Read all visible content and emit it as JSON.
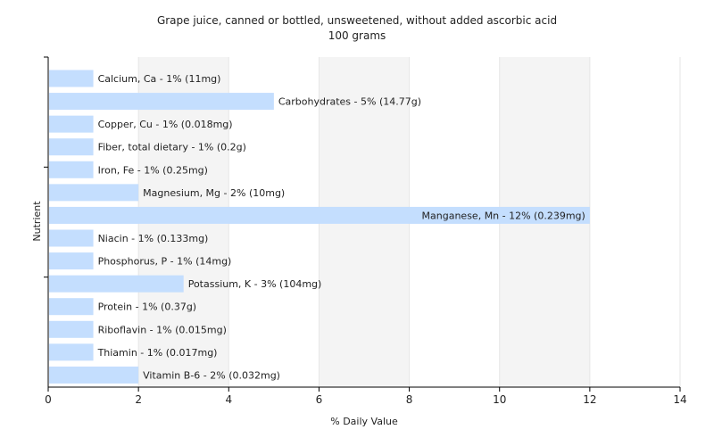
{
  "chart_data": {
    "type": "bar",
    "orientation": "horizontal",
    "title": "Grape juice, canned or bottled, unsweetened, without added ascorbic acid",
    "subtitle": "100 grams",
    "xlabel": "% Daily Value",
    "ylabel": "Nutrient",
    "xlim": [
      0,
      14
    ],
    "xticks": [
      0,
      2,
      4,
      6,
      8,
      10,
      12,
      14
    ],
    "grid": true,
    "bar_color": "#c4defe",
    "categories": [
      "Calcium, Ca",
      "Carbohydrates",
      "Copper, Cu",
      "Fiber, total dietary",
      "Iron, Fe",
      "Magnesium, Mg",
      "Manganese, Mn",
      "Niacin",
      "Phosphorus, P",
      "Potassium, K",
      "Protein",
      "Riboflavin",
      "Thiamin",
      "Vitamin B-6"
    ],
    "values": [
      1,
      5,
      1,
      1,
      1,
      2,
      12,
      1,
      1,
      3,
      1,
      1,
      1,
      2
    ],
    "labels": [
      "Calcium, Ca - 1% (11mg)",
      "Carbohydrates - 5% (14.77g)",
      "Copper, Cu - 1% (0.018mg)",
      "Fiber, total dietary - 1% (0.2g)",
      "Iron, Fe - 1% (0.25mg)",
      "Magnesium, Mg - 2% (10mg)",
      "Manganese, Mn - 12% (0.239mg)",
      "Niacin - 1% (0.133mg)",
      "Phosphorus, P - 1% (14mg)",
      "Potassium, K - 3% (104mg)",
      "Protein - 1% (0.37g)",
      "Riboflavin - 1% (0.015mg)",
      "Thiamin - 1% (0.017mg)",
      "Vitamin B-6 - 2% (0.032mg)"
    ]
  }
}
